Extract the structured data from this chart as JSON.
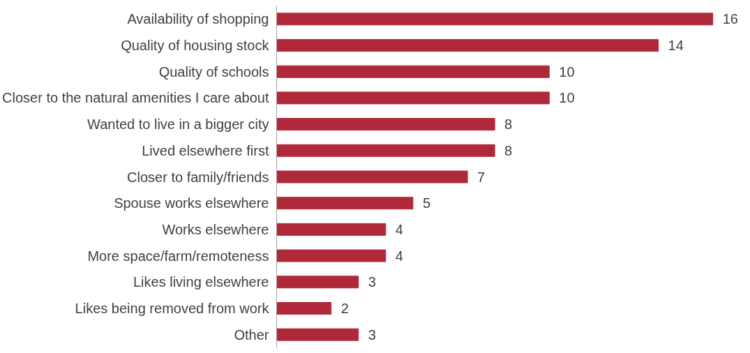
{
  "chart_data": {
    "type": "bar",
    "orientation": "horizontal",
    "color": "#b0293a",
    "data_labels": true,
    "categories": [
      "Availability of shopping",
      "Quality of housing stock",
      "Quality of schools",
      "Closer to the natural amenities I care about",
      "Wanted to live in a bigger city",
      "Lived elsewhere first",
      "Closer to family/friends",
      "Spouse works elsewhere",
      "Works elsewhere",
      "More space/farm/remoteness",
      "Likes living elsewhere",
      "Likes being removed from work",
      "Other"
    ],
    "values": [
      16,
      14,
      10,
      10,
      8,
      8,
      7,
      5,
      4,
      4,
      3,
      2,
      3
    ]
  }
}
